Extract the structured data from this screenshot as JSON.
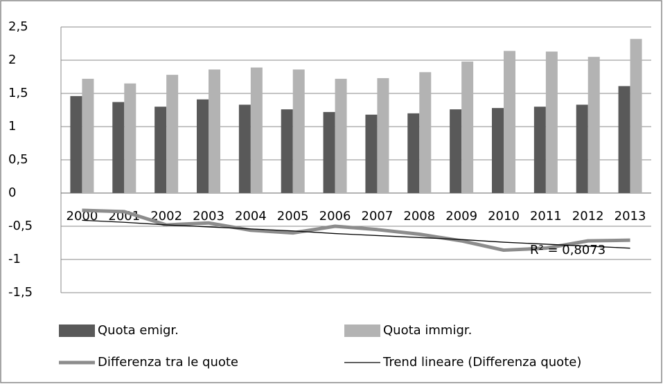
{
  "chart_data": {
    "type": "bar",
    "categories": [
      "2000",
      "2001",
      "2002",
      "2003",
      "2004",
      "2005",
      "2006",
      "2007",
      "2008",
      "2009",
      "2010",
      "2011",
      "2012",
      "2013"
    ],
    "series": [
      {
        "name": "Quota emigr.",
        "type": "bar",
        "color": "#595959",
        "values": [
          1.46,
          1.37,
          1.3,
          1.41,
          1.33,
          1.26,
          1.22,
          1.18,
          1.2,
          1.26,
          1.28,
          1.3,
          1.33,
          1.61
        ]
      },
      {
        "name": "Quota immigr.",
        "type": "bar",
        "color": "#b3b3b3",
        "values": [
          1.72,
          1.65,
          1.78,
          1.86,
          1.89,
          1.86,
          1.72,
          1.73,
          1.82,
          1.98,
          2.14,
          2.13,
          2.05,
          2.32
        ]
      },
      {
        "name": "Differenza tra le quote",
        "type": "line",
        "color": "#8c8c8c",
        "values": [
          -0.26,
          -0.28,
          -0.48,
          -0.45,
          -0.56,
          -0.6,
          -0.5,
          -0.55,
          -0.62,
          -0.72,
          -0.86,
          -0.83,
          -0.72,
          -0.71
        ]
      },
      {
        "name": "Trend lineare (Differenza quote)",
        "type": "trend",
        "color": "#000000",
        "values": [
          -0.41,
          -0.44,
          -0.48,
          -0.51,
          -0.54,
          -0.57,
          -0.61,
          -0.64,
          -0.67,
          -0.7,
          -0.74,
          -0.77,
          -0.8,
          -0.83
        ]
      }
    ],
    "annotation": "R² = 0,8073",
    "ylim": [
      -1.5,
      2.5
    ],
    "yticks": [
      {
        "value": 2.5,
        "label": "2,5"
      },
      2,
      {
        "value": 1.5,
        "label": "1,5"
      },
      1,
      {
        "value": 0.5,
        "label": "0,5"
      },
      0,
      {
        "value": -0.5,
        "label": "-0,5"
      },
      -1,
      {
        "value": -1.5,
        "label": "-1,5"
      }
    ],
    "grid": true
  }
}
